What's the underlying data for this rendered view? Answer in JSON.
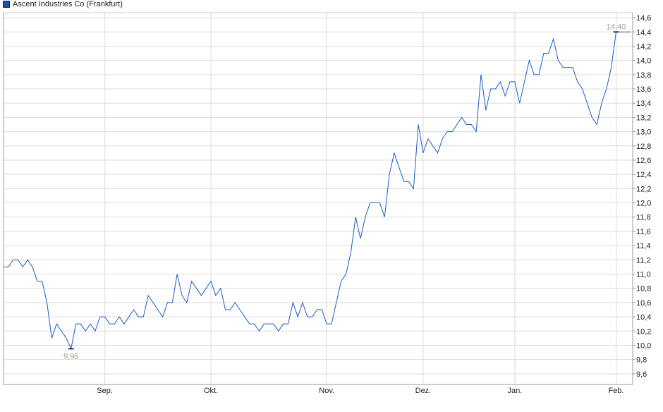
{
  "chart_data": {
    "type": "line",
    "title": "",
    "legend": {
      "label": "Ascent Industries Co (Frankfurt)",
      "position": "top-left"
    },
    "series": [
      {
        "name": "Ascent Industries Co (Frankfurt)",
        "color": "#1a5cc8",
        "values": [
          11.1,
          11.1,
          11.2,
          11.2,
          11.1,
          11.2,
          11.1,
          10.9,
          10.9,
          10.6,
          10.1,
          10.3,
          10.2,
          10.1,
          9.95,
          10.3,
          10.3,
          10.2,
          10.3,
          10.2,
          10.4,
          10.4,
          10.3,
          10.3,
          10.4,
          10.3,
          10.4,
          10.5,
          10.4,
          10.4,
          10.7,
          10.6,
          10.5,
          10.4,
          10.6,
          10.6,
          11.0,
          10.7,
          10.6,
          10.9,
          10.8,
          10.7,
          10.8,
          10.9,
          10.7,
          10.8,
          10.5,
          10.5,
          10.6,
          10.5,
          10.4,
          10.3,
          10.3,
          10.2,
          10.3,
          10.3,
          10.3,
          10.2,
          10.3,
          10.3,
          10.6,
          10.4,
          10.6,
          10.4,
          10.4,
          10.5,
          10.5,
          10.3,
          10.3,
          10.6,
          10.9,
          11.0,
          11.3,
          11.8,
          11.5,
          11.8,
          12.0,
          12.0,
          12.0,
          11.8,
          12.4,
          12.7,
          12.5,
          12.3,
          12.3,
          12.2,
          13.1,
          12.7,
          12.9,
          12.8,
          12.7,
          12.9,
          13.0,
          13.0,
          13.1,
          13.2,
          13.1,
          13.1,
          13.0,
          13.8,
          13.3,
          13.6,
          13.6,
          13.7,
          13.5,
          13.7,
          13.7,
          13.4,
          13.7,
          14.0,
          13.8,
          13.8,
          14.1,
          14.1,
          14.3,
          14.0,
          13.9,
          13.9,
          13.9,
          13.7,
          13.6,
          13.4,
          13.2,
          13.1,
          13.4,
          13.6,
          13.9,
          14.4,
          14.4,
          14.4,
          14.4
        ]
      }
    ],
    "x_ticks": [
      {
        "label": "Sep.",
        "index": 21
      },
      {
        "label": "Okt.",
        "index": 43
      },
      {
        "label": "Nov.",
        "index": 67
      },
      {
        "label": "Dez.",
        "index": 87
      },
      {
        "label": "Jan.",
        "index": 106
      },
      {
        "label": "Feb.",
        "index": 127
      }
    ],
    "y_ticks": [
      "9,6",
      "9,8",
      "10,0",
      "10,2",
      "10,4",
      "10,6",
      "10,8",
      "11,0",
      "11,2",
      "11,4",
      "11,6",
      "11,8",
      "12,0",
      "12,2",
      "12,4",
      "12,6",
      "12,8",
      "13,0",
      "13,2",
      "13,4",
      "13,6",
      "13,8",
      "14,0",
      "14,2",
      "14,4",
      "14,6"
    ],
    "ylim": [
      9.45,
      14.67
    ],
    "grid": true,
    "annotations": {
      "min": {
        "label": "9,95",
        "value": 9.95,
        "index": 14
      },
      "max": {
        "label": "14,40",
        "value": 14.4,
        "index": 127
      },
      "color": "#a89a8a"
    }
  }
}
